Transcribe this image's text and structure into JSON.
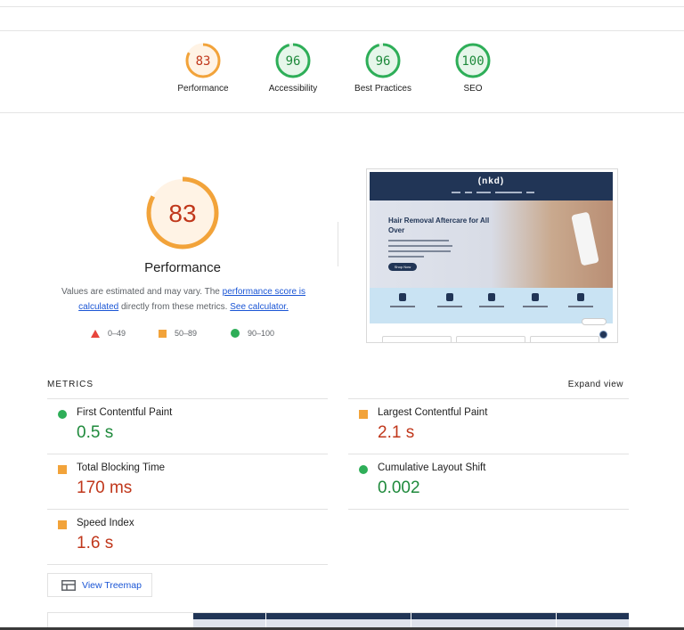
{
  "summary": {
    "gauges": [
      {
        "label": "Performance",
        "score": "83",
        "value": 0.83,
        "color": "#f2a33a",
        "fill": "#fff3e5",
        "text_color": "#c0371b"
      },
      {
        "label": "Accessibility",
        "score": "96",
        "value": 0.96,
        "color": "#2eae58",
        "fill": "#e6f6ea",
        "text_color": "#1f8a3c"
      },
      {
        "label": "Best Practices",
        "score": "96",
        "value": 0.96,
        "color": "#2eae58",
        "fill": "#e6f6ea",
        "text_color": "#1f8a3c"
      },
      {
        "label": "SEO",
        "score": "100",
        "value": 1.0,
        "color": "#2eae58",
        "fill": "#e6f6ea",
        "text_color": "#1f8a3c"
      }
    ]
  },
  "performance": {
    "score": "83",
    "value": 0.83,
    "title": "Performance",
    "desc_part1": "Values are estimated and may vary. The ",
    "desc_link1": "performance score is calculated",
    "desc_part2": " directly from these metrics. ",
    "desc_link2": "See calculator.",
    "legend": [
      {
        "shape": "triangle",
        "range": "0–49",
        "color": "#e8453c"
      },
      {
        "shape": "square",
        "range": "50–89",
        "color": "#f2a33a"
      },
      {
        "shape": "circle",
        "range": "90–100",
        "color": "#2eae58"
      }
    ]
  },
  "screenshot": {
    "logo": "(nkd)",
    "hero_title": "Hair Removal Aftercare for All Over",
    "hero_button": "Shop Now"
  },
  "metrics": {
    "title": "METRICS",
    "expand_label": "Expand view",
    "items": [
      {
        "name": "First Contentful Paint",
        "value": "0.5 s",
        "status": "pass"
      },
      {
        "name": "Largest Contentful Paint",
        "value": "2.1 s",
        "status": "average"
      },
      {
        "name": "Total Blocking Time",
        "value": "170 ms",
        "status": "average"
      },
      {
        "name": "Cumulative Layout Shift",
        "value": "0.002",
        "status": "pass"
      },
      {
        "name": "Speed Index",
        "value": "1.6 s",
        "status": "average"
      }
    ],
    "treemap_label": "View Treemap"
  },
  "colors": {
    "pass": "#2eae58",
    "average": "#f2a33a",
    "fail": "#e8453c",
    "link": "#1a55d5"
  }
}
